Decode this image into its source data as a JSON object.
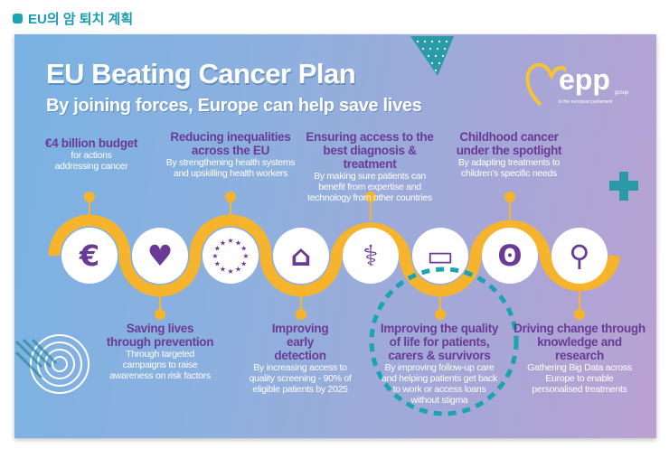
{
  "header": {
    "title": "EU의 암 퇴치 계획"
  },
  "poster": {
    "title": "EU Beating Cancer Plan",
    "subtitle": "By joining forces, Europe can help save lives",
    "logo": {
      "name": "epp",
      "group": "group",
      "sub": "in the european parliament"
    },
    "colors": {
      "accent": "#f6b42c",
      "heading": "#6a3b96",
      "dashed": "#1aa3b3"
    },
    "top_items": [
      {
        "heading": "€4 billion budget",
        "text": "for actions addressing cancer",
        "icon": "euro-icon"
      },
      {
        "heading": "Reducing inequalities across the EU",
        "text": "By strengthening health systems and upskilling health workers",
        "icon": "eu-stars-icon"
      },
      {
        "heading": "Ensuring access to the best diagnosis & treatment",
        "text": "By making sure patients can benefit from expertise and technology from other countries",
        "icon": "doctor-icon"
      },
      {
        "heading": "Childhood cancer under the spotlight",
        "text": "By adapting treatments to children's specific needs",
        "icon": "teddy-bear-icon"
      }
    ],
    "bottom_items": [
      {
        "heading": "Saving lives through prevention",
        "text": "Through targeted campaigns to raise awareness on risk factors",
        "icon": "person-heart-icon"
      },
      {
        "heading": "Improving early detection",
        "text": "By increasing access to quality screening - 90% of eligible patients by 2025",
        "icon": "house-cross-icon"
      },
      {
        "heading": "Improving the quality of life for patients, carers & survivors",
        "text": "By improving follow-up care and helping patients get back to work or access loans without stigma",
        "icon": "medical-monitor-icon"
      },
      {
        "heading": "Driving change through knowledge and research",
        "text": "Gathering Big Data across Europe to enable personalised treatments",
        "icon": "microscope-icon"
      }
    ]
  }
}
